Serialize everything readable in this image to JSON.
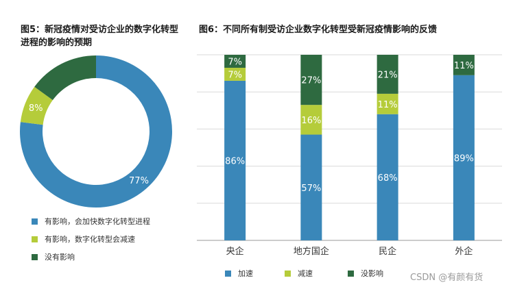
{
  "colors": {
    "blue": "#3a87b9",
    "lime": "#b5cc3a",
    "green": "#2e6a40"
  },
  "chart_data": [
    {
      "type": "pie",
      "variant": "donut",
      "title": "图5：新冠疫情对受访企业的数字化转型进程的影响的预期",
      "slices": [
        {
          "name": "有影响，会加快数字化转型进程",
          "value": 77,
          "label": "77%",
          "color": "#3a87b9"
        },
        {
          "name": "有影响，数字化转型会减速",
          "value": 8,
          "label": "8%",
          "color": "#b5cc3a"
        },
        {
          "name": "没有影响",
          "value": 15,
          "label": "",
          "color": "#2e6a40"
        }
      ],
      "legend": [
        "有影响，会加快数字化转型进程",
        "有影响，数字化转型会减速",
        "没有影响"
      ]
    },
    {
      "type": "bar",
      "stacked": true,
      "title": "图6：不同所有制受访企业数字化转型受新冠疫情影响的反馈",
      "categories": [
        "央企",
        "地方国企",
        "民企",
        "外企"
      ],
      "series": [
        {
          "name": "加速",
          "color": "#3a87b9",
          "values": [
            86,
            57,
            68,
            89
          ],
          "labels": [
            "86%",
            "57%",
            "68%",
            "89%"
          ]
        },
        {
          "name": "减速",
          "color": "#b5cc3a",
          "values": [
            7,
            16,
            11,
            0
          ],
          "labels": [
            "7%",
            "16%",
            "11%",
            ""
          ]
        },
        {
          "name": "没影响",
          "color": "#2e6a40",
          "values": [
            7,
            27,
            21,
            11
          ],
          "labels": [
            "7%",
            "27%",
            "21%",
            "11%"
          ]
        }
      ],
      "ylim": [
        0,
        100
      ],
      "grid": true,
      "legend": [
        "加速",
        "减速",
        "没影响"
      ]
    }
  ],
  "watermark": "CSDN @有颜有货"
}
